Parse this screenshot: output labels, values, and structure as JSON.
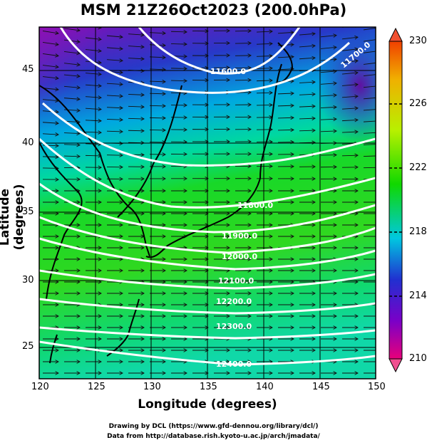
{
  "title": "MSM 21Z26Oct2023 (200.0hPa)",
  "axes": {
    "xlabel": "Longitude (degrees)",
    "ylabel": "Latitude  (degrees)",
    "x_ticks": [
      "120",
      "125",
      "130",
      "135",
      "140",
      "145",
      "150"
    ],
    "y_ticks": [
      "25",
      "30",
      "35",
      "40",
      "45"
    ],
    "x_range": [
      120,
      150
    ],
    "y_range": [
      22.4,
      47.6
    ]
  },
  "colorbar": {
    "ticks": [
      "230",
      "226",
      "222",
      "218",
      "214",
      "210"
    ],
    "range": [
      210,
      230
    ],
    "colors": [
      "#e8007a",
      "#7a00c8",
      "#2030d0",
      "#00c8e0",
      "#10d800",
      "#b8f000",
      "#f0b000",
      "#f04000"
    ]
  },
  "contours": [
    {
      "label": "11600.0",
      "lon": 142.5
    },
    {
      "label": "11700.0",
      "lon": 148.6
    },
    {
      "label": "11800.0",
      "lon": 138.7
    },
    {
      "label": "11900.0",
      "lon": 139.0
    },
    {
      "label": "12000.0",
      "lon": 139.0
    },
    {
      "label": "12100.0",
      "lon": 138.8
    },
    {
      "label": "12200.0",
      "lon": 139.0
    },
    {
      "label": "12300.0",
      "lon": 139.2
    },
    {
      "label": "12400.0",
      "lon": 138.9
    }
  ],
  "credits": {
    "line1": "Drawing by DCL (https://www.gfd-dennou.org/library/dcl/)",
    "line2": "Data from http://database.rish.kyoto-u.ac.jp/arch/jmadata/"
  }
}
